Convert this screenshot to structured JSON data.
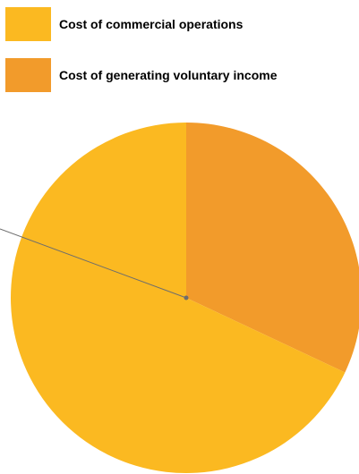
{
  "chart_data": {
    "type": "pie",
    "title": "",
    "series": [
      {
        "name": "Cost of commercial operations",
        "value": 68,
        "color": "#FBB921"
      },
      {
        "name": "Cost of generating voluntary income",
        "value": 32,
        "color": "#F29B2B"
      }
    ],
    "legend_position": "top-left",
    "start_angle_deg": 0,
    "direction": "clockwise"
  }
}
